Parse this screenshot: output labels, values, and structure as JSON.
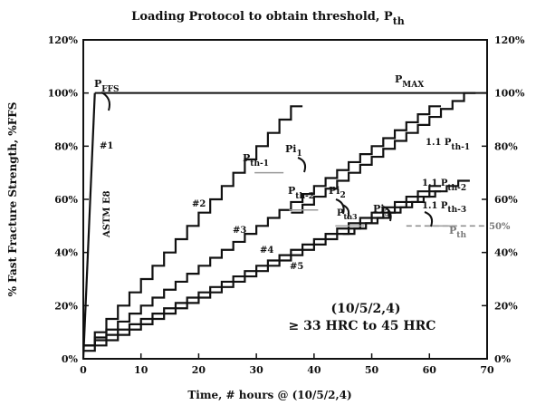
{
  "chart_data": {
    "type": "line",
    "title": "Loading Protocol to obtain threshold, P",
    "title_subscript": "th",
    "xlabel": "Time, # hours @  (10/5/2,4)",
    "ylabel": "% Fast Fracture Strength, %FFS",
    "xlim": [
      0,
      70
    ],
    "ylim": [
      0,
      120
    ],
    "x_ticks": [
      "0",
      "10",
      "20",
      "30",
      "40",
      "50",
      "60",
      "70"
    ],
    "y_ticks_left": [
      "0%",
      "20%",
      "40%",
      "60%",
      "80%",
      "100%",
      "120%"
    ],
    "y_ticks_right": [
      "0%",
      "20%",
      "40%",
      "60%",
      "80%",
      "100%",
      "120%"
    ],
    "grid": false,
    "legend": "none",
    "series": [
      {
        "label": "#1",
        "kind": "ramp",
        "x": [
          0,
          2
        ],
        "y": [
          0,
          100
        ]
      },
      {
        "label": "#2",
        "kind": "step",
        "start_x": 0,
        "start_y": 5,
        "step_x": 2,
        "step_y": 5,
        "steps": 18
      },
      {
        "label": "#3",
        "kind": "step",
        "start_x": 0,
        "start_y": 5,
        "step_x": 2,
        "step_y": 3,
        "steps": 30
      },
      {
        "label": "#4",
        "kind": "step",
        "start_x": 0,
        "start_y": 5,
        "step_x": 2,
        "step_y": 2,
        "steps": 30
      },
      {
        "label": "#5",
        "kind": "step",
        "start_x": 0,
        "start_y": 3,
        "step_x": 2,
        "step_y": 2,
        "steps": 30
      },
      {
        "label": "1.1 P th-1",
        "kind": "step",
        "start_x": 36,
        "start_y": 55,
        "step_x": 2,
        "step_y": 3,
        "steps": 15
      },
      {
        "label": "1.1 P th-2",
        "kind": "step",
        "start_x": 45,
        "start_y": 47,
        "step_x": 2,
        "step_y": 2,
        "steps": 10
      }
    ],
    "reference_lines": [
      {
        "label": "100%",
        "y": 100,
        "x_start": 2,
        "x_end": 70,
        "style": "solid"
      },
      {
        "label": "50%",
        "y": 50,
        "x_start": 56,
        "x_end": 70,
        "style": "dashed"
      }
    ],
    "threshold_marks": [
      {
        "label": "P th-1",
        "x": 30,
        "y": 70
      },
      {
        "label": "P th-2",
        "x": 36,
        "y": 56
      },
      {
        "label": "P th3",
        "x": 44,
        "y": 50
      },
      {
        "label": "P th",
        "x": 60,
        "y": 50
      }
    ],
    "annotations": {
      "pffs": "P",
      "pffs_sub": "FFS",
      "pmax": "P",
      "pmax_sub": "MAX",
      "pi1": "Pi",
      "pi1_sub": "1",
      "pi2": "Pi",
      "pi2_sub": "2",
      "pi3": "Pi",
      "pi3_sub": "3",
      "pth1": "P",
      "pth1_sub": "th-1",
      "pth2": "P",
      "pth2_sub": "th-2",
      "pth3": "P",
      "pth3_sub": "th3",
      "pth": "P",
      "pth_sub": "th",
      "p11_th1": "1.1 P",
      "p11_th1_sub": "th-1",
      "p11_th2": "1.1 P",
      "p11_th2_sub": "th-2",
      "p11_th3": "1.1 P",
      "p11_th3_sub": "th-3",
      "pct50": "50%",
      "astm": "ASTM E8",
      "code": "(10/5/2,4)",
      "hrc": "≥ 33 HRC to 45 HRC",
      "s1": "#1",
      "s2": "#2",
      "s3": "#3",
      "s4": "#4",
      "s5": "#5"
    }
  }
}
